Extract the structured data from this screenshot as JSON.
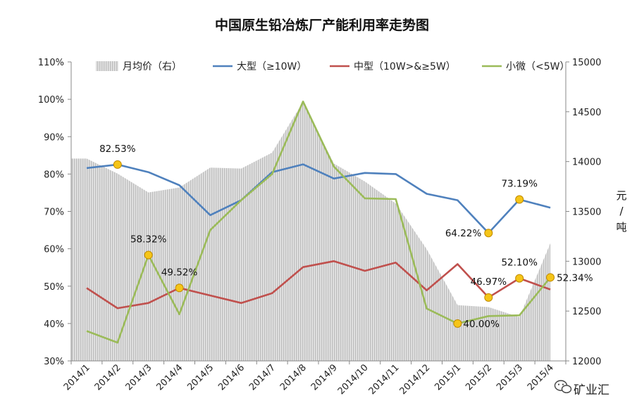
{
  "chart_data": {
    "type": "line",
    "title": "中国原生铅冶炼厂产能利用率走势图",
    "categories": [
      "2014/1",
      "2014/2",
      "2014/3",
      "2014/4",
      "2014/5",
      "2014/6",
      "2014/7",
      "2014/8",
      "2014/9",
      "2014/10",
      "2014/11",
      "2014/12",
      "2015/1",
      "2015/2",
      "2015/3",
      "2015/4"
    ],
    "y_left": {
      "ticks": [
        "30%",
        "40%",
        "50%",
        "60%",
        "70%",
        "80%",
        "90%",
        "100%",
        "110%"
      ],
      "min": 0.3,
      "max": 1.1
    },
    "y_right": {
      "ticks": [
        "12000",
        "12500",
        "13000",
        "13500",
        "14000",
        "14500",
        "15000"
      ],
      "min": 12000,
      "max": 15000,
      "label_chars": [
        "元",
        "/",
        "吨"
      ]
    },
    "area_series": {
      "name": "月均价（右）",
      "axis": "right",
      "color": "#c8c8c8",
      "values": [
        14030,
        13880,
        13690,
        13740,
        13940,
        13930,
        14090,
        14600,
        13980,
        13800,
        13580,
        13120,
        12560,
        12540,
        12440,
        13180
      ]
    },
    "series": [
      {
        "name": "大型（≥10W）",
        "color": "#4f81bd",
        "values": [
          0.816,
          0.8253,
          0.805,
          0.77,
          0.69,
          0.73,
          0.805,
          0.826,
          0.788,
          0.803,
          0.8,
          0.747,
          0.73,
          0.6422,
          0.7319,
          0.71
        ]
      },
      {
        "name": "中型（10W>&≥5W）",
        "color": "#c0504d",
        "values": [
          0.495,
          0.441,
          0.455,
          0.4952,
          0.475,
          0.455,
          0.481,
          0.551,
          0.567,
          0.541,
          0.563,
          0.489,
          0.559,
          0.4697,
          0.521,
          0.491
        ]
      },
      {
        "name": "小微（<5W）",
        "color": "#9bbb59",
        "values": [
          0.38,
          0.349,
          0.5832,
          0.425,
          0.65,
          0.73,
          0.8,
          0.994,
          0.82,
          0.735,
          0.733,
          0.44,
          0.4,
          0.42,
          0.422,
          0.5234
        ]
      }
    ],
    "highlight_color": "#f5c518",
    "annotations": [
      {
        "series": 0,
        "index": 1,
        "text": "82.53%"
      },
      {
        "series": 2,
        "index": 2,
        "text": "58.32%"
      },
      {
        "series": 1,
        "index": 3,
        "text": "49.52%"
      },
      {
        "series": 2,
        "index": 12,
        "text": "40.00%"
      },
      {
        "series": 0,
        "index": 13,
        "text": "64.22%"
      },
      {
        "series": 1,
        "index": 13,
        "text": "46.97%"
      },
      {
        "series": 0,
        "index": 14,
        "text": "73.19%"
      },
      {
        "series": 1,
        "index": 14,
        "text": "52.10%"
      },
      {
        "series": 2,
        "index": 15,
        "text": "52.34%"
      }
    ],
    "grid": false,
    "legend_position": "top"
  },
  "watermark": {
    "text": "矿业汇"
  }
}
